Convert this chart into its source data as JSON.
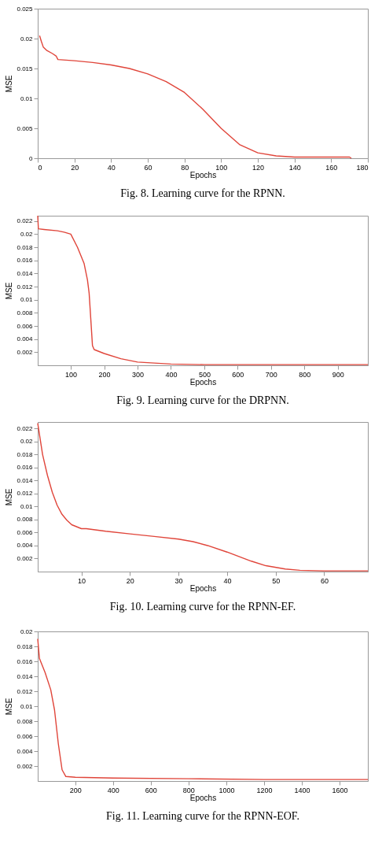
{
  "chart_data": [
    {
      "type": "line",
      "title": "Fig. 8.  Learning curve for the RPNN.",
      "xlabel": "Epochs",
      "ylabel": "MSE",
      "xlim": [
        0,
        180
      ],
      "xticks": [
        0,
        20,
        40,
        60,
        80,
        100,
        120,
        140,
        160,
        180
      ],
      "ylim": [
        0,
        0.025
      ],
      "yticks": [
        0,
        0.005,
        0.01,
        0.015,
        0.02,
        0.025
      ],
      "grid": false,
      "marker": "none",
      "line_style": "solid",
      "x": [
        1,
        2,
        3,
        5,
        8,
        10,
        11,
        20,
        30,
        40,
        50,
        60,
        70,
        80,
        90,
        100,
        110,
        120,
        130,
        140,
        160,
        170,
        171
      ],
      "series": [
        {
          "color": "#e0453a",
          "values": [
            0.0205,
            0.0195,
            0.0186,
            0.018,
            0.0175,
            0.0171,
            0.0165,
            0.0163,
            0.016,
            0.0156,
            0.015,
            0.0141,
            0.0128,
            0.011,
            0.0082,
            0.005,
            0.0023,
            0.0009,
            0.0004,
            0.0002,
            0.0002,
            0.0002,
            0
          ]
        }
      ]
    },
    {
      "type": "line",
      "title": "Fig. 9.  Learning curve for the DRPNN.",
      "xlabel": "Epochs",
      "ylabel": "MSE",
      "xlim": [
        1,
        990
      ],
      "xticks": [
        100,
        200,
        300,
        400,
        500,
        600,
        700,
        800,
        900
      ],
      "ylim": [
        0,
        0.0228
      ],
      "yticks": [
        0.002,
        0.004,
        0.006,
        0.008,
        0.01,
        0.012,
        0.014,
        0.016,
        0.018,
        0.02,
        0.022
      ],
      "grid": false,
      "marker": "none",
      "line_style": "solid",
      "x": [
        1,
        3,
        20,
        60,
        80,
        100,
        120,
        140,
        150,
        155,
        160,
        165,
        170,
        200,
        250,
        300,
        400,
        500,
        990
      ],
      "series": [
        {
          "color": "#e0453a",
          "values": [
            0.0228,
            0.0208,
            0.0207,
            0.0205,
            0.0203,
            0.02,
            0.018,
            0.0155,
            0.013,
            0.011,
            0.007,
            0.003,
            0.0024,
            0.0018,
            0.001,
            0.0005,
            0.0002,
            0.0001,
            0.0001
          ]
        }
      ]
    },
    {
      "type": "line",
      "title": "Fig. 10.  Learning curve for the RPNN-EF.",
      "xlabel": "Epochs",
      "ylabel": "MSE",
      "xlim": [
        1,
        69
      ],
      "xticks": [
        10,
        20,
        30,
        40,
        50,
        60
      ],
      "ylim": [
        0,
        0.023
      ],
      "yticks": [
        0.002,
        0.004,
        0.006,
        0.008,
        0.01,
        0.012,
        0.014,
        0.016,
        0.018,
        0.02,
        0.022
      ],
      "grid": false,
      "marker": "none",
      "line_style": "solid",
      "x": [
        1,
        2,
        3,
        4,
        5,
        6,
        7,
        8,
        10,
        11,
        15,
        20,
        25,
        30,
        33,
        36,
        40,
        45,
        48,
        52,
        55,
        60,
        69
      ],
      "series": [
        {
          "color": "#e0453a",
          "values": [
            0.0228,
            0.018,
            0.0148,
            0.0122,
            0.0102,
            0.0088,
            0.0079,
            0.0072,
            0.0066,
            0.0066,
            0.0062,
            0.0058,
            0.0054,
            0.005,
            0.0046,
            0.004,
            0.003,
            0.0016,
            0.0009,
            0.0004,
            0.0002,
            0.0001,
            0.0001
          ]
        }
      ]
    },
    {
      "type": "line",
      "title": "Fig. 11.  Learning curve for the RPNN-EOF.",
      "xlabel": "Epochs",
      "ylabel": "MSE",
      "xlim": [
        1,
        1750
      ],
      "xticks": [
        200,
        400,
        600,
        800,
        1000,
        1200,
        1400,
        1600
      ],
      "ylim": [
        0,
        0.02
      ],
      "yticks": [
        0.002,
        0.004,
        0.006,
        0.008,
        0.01,
        0.012,
        0.014,
        0.016,
        0.018,
        0.02
      ],
      "grid": false,
      "marker": "none",
      "line_style": "solid",
      "x": [
        1,
        10,
        40,
        70,
        90,
        110,
        130,
        150,
        200,
        400,
        800,
        1200,
        1750
      ],
      "series": [
        {
          "color": "#e0453a",
          "values": [
            0.019,
            0.0164,
            0.0145,
            0.0122,
            0.0095,
            0.005,
            0.0015,
            0.0006,
            0.0005,
            0.0004,
            0.0003,
            0.0002,
            0.0002
          ]
        }
      ]
    }
  ]
}
